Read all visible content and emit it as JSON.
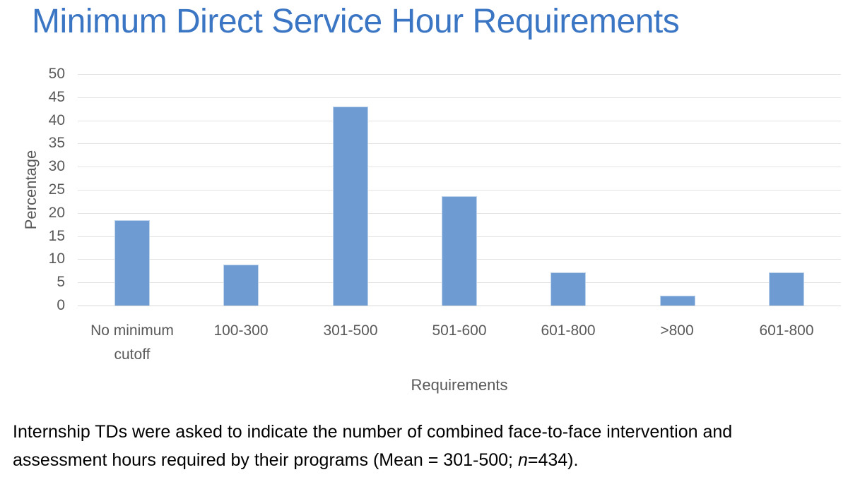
{
  "chart_data": {
    "type": "bar",
    "title": "Minimum Direct Service Hour Requirements",
    "categories": [
      "No minimum cutoff",
      "100-300",
      "301-500",
      "501-600",
      "601-800",
      ">800",
      "601-800"
    ],
    "values": [
      18.4,
      8.9,
      43,
      23.7,
      7.1,
      2.2,
      7.1
    ],
    "xlabel": "Requirements",
    "ylabel": "Percentage",
    "ylim": [
      0,
      50
    ],
    "ytick_step": 5,
    "grid": true,
    "legend": "none",
    "colors": {
      "title": "#3B76C4",
      "bar_fill": "#6E9CD2",
      "bar_border": "#C0D5EC",
      "axis_text": "#595959",
      "gridline": "#E3E3E3",
      "baseline": "#D8D8D8",
      "caption_text": "#000000"
    }
  },
  "caption": {
    "line1": "Internship TDs were asked to indicate the number of combined face-to-face intervention and",
    "line2_before": "assessment hours required by their programs (Mean = 301-500; ",
    "italic_n": "n",
    "line2_after": "=434)."
  }
}
